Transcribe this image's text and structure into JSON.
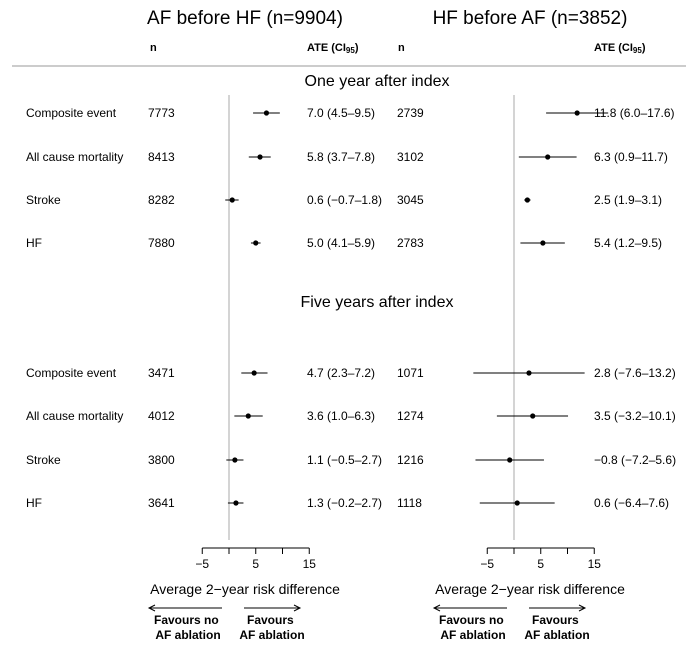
{
  "chart_data": {
    "type": "forest",
    "x_axis_label": "Average 2−year risk difference",
    "x_ticks": [
      -5,
      5,
      15
    ],
    "xlim": [
      -10,
      15
    ],
    "headers": {
      "n": "n",
      "ate_prefix": "ATE (CI",
      "ate_sub": "95",
      "ate_suffix": ")"
    },
    "favours_left": [
      "Favours no",
      "AF ablation"
    ],
    "favours_right": [
      "Favours",
      "AF ablation"
    ],
    "panels": [
      {
        "title": "AF before HF (n=9904)",
        "sections": [
          {
            "title": "One year after index",
            "rows": [
              {
                "label": "Composite event",
                "n": "7773",
                "est": 7.0,
                "lo": 4.5,
                "hi": 9.5,
                "text": "7.0 (4.5–9.5)"
              },
              {
                "label": "All cause mortality",
                "n": "8413",
                "est": 5.8,
                "lo": 3.7,
                "hi": 7.8,
                "text": "5.8 (3.7–7.8)"
              },
              {
                "label": "Stroke",
                "n": "8282",
                "est": 0.6,
                "lo": -0.7,
                "hi": 1.8,
                "text": "0.6 (−0.7–1.8)"
              },
              {
                "label": "HF",
                "n": "7880",
                "est": 5.0,
                "lo": 4.1,
                "hi": 5.9,
                "text": "5.0 (4.1–5.9)"
              }
            ]
          },
          {
            "title": "Five years after index",
            "rows": [
              {
                "label": "Composite event",
                "n": "3471",
                "est": 4.7,
                "lo": 2.3,
                "hi": 7.2,
                "text": "4.7 (2.3–7.2)"
              },
              {
                "label": "All cause mortality",
                "n": "4012",
                "est": 3.6,
                "lo": 1.0,
                "hi": 6.3,
                "text": "3.6 (1.0–6.3)"
              },
              {
                "label": "Stroke",
                "n": "3800",
                "est": 1.1,
                "lo": -0.5,
                "hi": 2.7,
                "text": "1.1 (−0.5–2.7)"
              },
              {
                "label": "HF",
                "n": "3641",
                "est": 1.3,
                "lo": -0.2,
                "hi": 2.7,
                "text": "1.3 (−0.2–2.7)"
              }
            ]
          }
        ]
      },
      {
        "title": "HF before AF (n=3852)",
        "sections": [
          {
            "title": "One year after index",
            "rows": [
              {
                "label": "Composite event",
                "n": "2739",
                "est": 11.8,
                "lo": 6.0,
                "hi": 17.6,
                "text": "11.8 (6.0–17.6)"
              },
              {
                "label": "All cause mortality",
                "n": "3102",
                "est": 6.3,
                "lo": 0.9,
                "hi": 11.7,
                "text": "6.3 (0.9–11.7)"
              },
              {
                "label": "Stroke",
                "n": "3045",
                "est": 2.5,
                "lo": 1.9,
                "hi": 3.1,
                "text": "2.5 (1.9–3.1)"
              },
              {
                "label": "HF",
                "n": "2783",
                "est": 5.4,
                "lo": 1.2,
                "hi": 9.5,
                "text": "5.4 (1.2–9.5)"
              }
            ]
          },
          {
            "title": "Five years after index",
            "rows": [
              {
                "label": "Composite event",
                "n": "1071",
                "est": 2.8,
                "lo": -7.6,
                "hi": 13.2,
                "text": "2.8 (−7.6–13.2)"
              },
              {
                "label": "All cause mortality",
                "n": "1274",
                "est": 3.5,
                "lo": -3.2,
                "hi": 10.1,
                "text": "3.5 (−3.2–10.1)"
              },
              {
                "label": "Stroke",
                "n": "1216",
                "est": -0.8,
                "lo": -7.2,
                "hi": 5.6,
                "text": "−0.8 (−7.2–5.6)"
              },
              {
                "label": "HF",
                "n": "1118",
                "est": 0.6,
                "lo": -6.4,
                "hi": 7.6,
                "text": "0.6 (−6.4–7.6)"
              }
            ]
          }
        ]
      }
    ]
  }
}
